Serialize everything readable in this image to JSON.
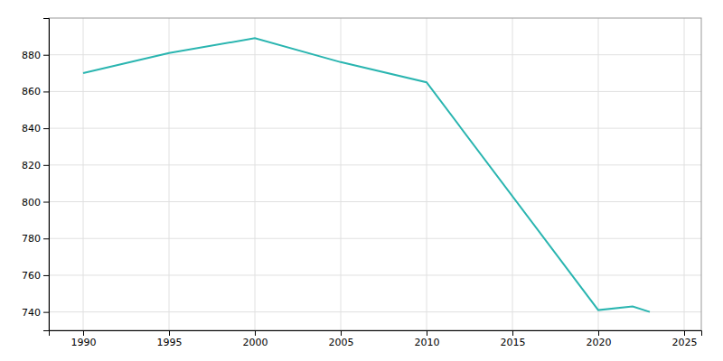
{
  "chart_data": {
    "type": "line",
    "x": [
      1990,
      1995,
      2000,
      2005,
      2010,
      2020,
      2022,
      2023
    ],
    "values": [
      870,
      881,
      889,
      876,
      865,
      741,
      743,
      740
    ],
    "color": "#2ab5b0",
    "xlim": [
      1988,
      2026
    ],
    "ylim": [
      730,
      900
    ],
    "xticks": [
      1990,
      1995,
      2000,
      2005,
      2010,
      2015,
      2020,
      2025
    ],
    "yticks": [
      740,
      760,
      780,
      800,
      820,
      840,
      860,
      880
    ],
    "grid": true
  }
}
